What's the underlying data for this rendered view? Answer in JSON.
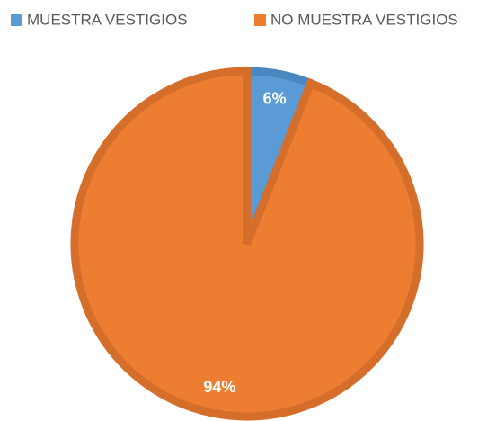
{
  "chart_data": {
    "type": "pie",
    "categories": [
      "MUESTRA VESTIGIOS",
      "NO MUESTRA VESTIGIOS"
    ],
    "values": [
      6,
      94
    ],
    "value_labels": [
      "6%",
      "94%"
    ],
    "colors": [
      "#5b9bd5",
      "#ed7d31"
    ],
    "border_colors": [
      "#4a86c0",
      "#d56e2b"
    ]
  }
}
